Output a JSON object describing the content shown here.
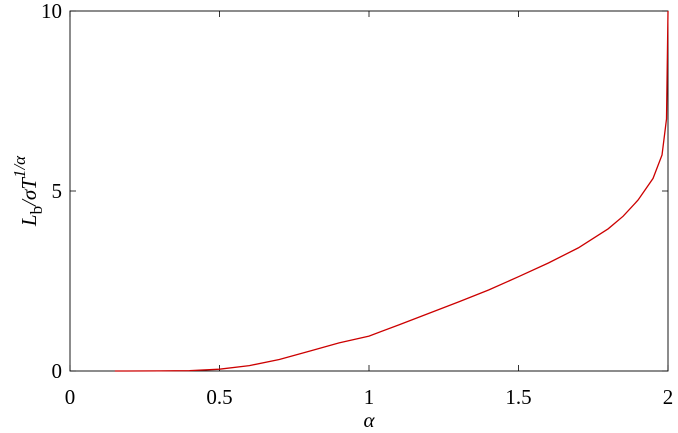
{
  "chart_data": {
    "type": "line",
    "x_label": "α",
    "y_label": [
      "L",
      "b",
      "/σT",
      "1/α"
    ],
    "series": [
      {
        "color": "#cc0000",
        "x": [
          0.15,
          0.3,
          0.4,
          0.5,
          0.6,
          0.7,
          0.8,
          0.9,
          1.0,
          1.1,
          1.2,
          1.3,
          1.4,
          1.5,
          1.6,
          1.7,
          1.8,
          1.85,
          1.9,
          1.95,
          1.98,
          1.995,
          2.0
        ],
        "values": [
          0,
          0.003,
          0.01,
          0.05,
          0.15,
          0.32,
          0.55,
          0.78,
          0.97,
          1.28,
          1.6,
          1.92,
          2.25,
          2.62,
          3.0,
          3.42,
          3.95,
          4.3,
          4.75,
          5.35,
          6.0,
          7.0,
          10
        ]
      }
    ],
    "xlim": [
      0,
      2
    ],
    "ylim": [
      0,
      10
    ],
    "xticks": [
      0,
      0.5,
      1,
      1.5,
      2
    ],
    "yticks": [
      0,
      5,
      10
    ]
  }
}
